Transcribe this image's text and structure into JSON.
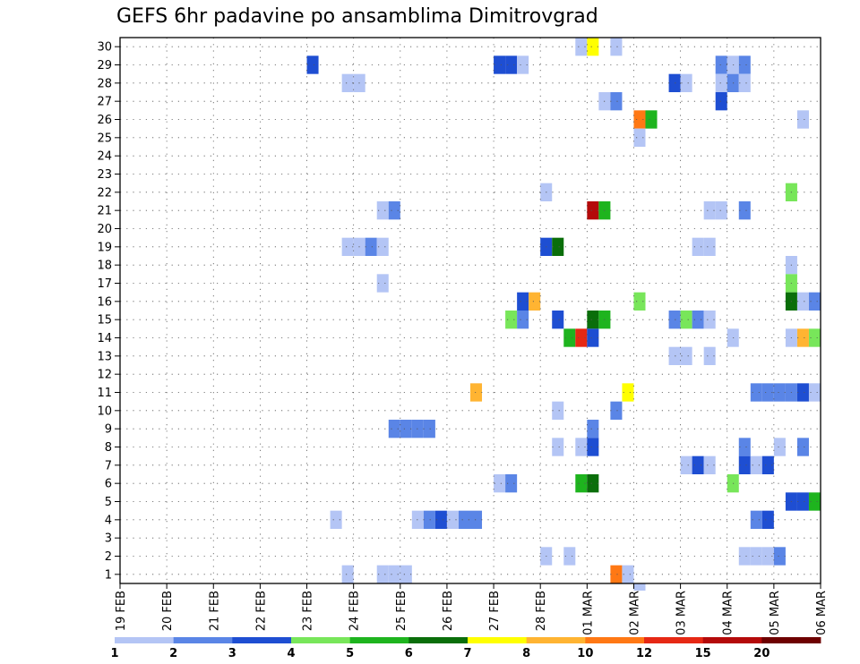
{
  "chart_data": {
    "type": "heatmap",
    "title": "GEFS 6hr padavine po ansamblima Dimitrovgrad",
    "xlabel": "",
    "ylabel": "",
    "x_ticks": [
      "19 FEB",
      "20 FEB",
      "21 FEB",
      "22 FEB",
      "23 FEB",
      "24 FEB",
      "25 FEB",
      "26 FEB",
      "27 FEB",
      "28 FEB",
      "01 MAR",
      "02 MAR",
      "03 MAR",
      "04 MAR",
      "05 MAR",
      "06 MAR"
    ],
    "xlim": [
      0,
      60
    ],
    "ylim": [
      0.5,
      30.5
    ],
    "y_ticks": [
      1,
      2,
      3,
      4,
      5,
      6,
      7,
      8,
      9,
      10,
      11,
      12,
      13,
      14,
      15,
      16,
      17,
      18,
      19,
      20,
      21,
      22,
      23,
      24,
      25,
      26,
      27,
      28,
      29,
      30
    ],
    "grid": true,
    "colorbar": {
      "labels": [
        "1",
        "2",
        "3",
        "4",
        "5",
        "6",
        "7",
        "8",
        "10",
        "12",
        "15",
        "20"
      ],
      "colors": [
        "#b4c5f5",
        "#5a85e6",
        "#1e4ed2",
        "#78e65a",
        "#1eb41e",
        "#0a6e0a",
        "#ffff00",
        "#ffb432",
        "#ff7814",
        "#e62814",
        "#b40a0a",
        "#6e0000"
      ]
    },
    "cells": [
      {
        "member": 30,
        "step": 39,
        "level": 1
      },
      {
        "member": 30,
        "step": 40,
        "level": 7
      },
      {
        "member": 30,
        "step": 42,
        "level": 1
      },
      {
        "member": 29,
        "step": 16,
        "level": 3
      },
      {
        "member": 29,
        "step": 32,
        "level": 3
      },
      {
        "member": 29,
        "step": 33,
        "level": 3
      },
      {
        "member": 29,
        "step": 34,
        "level": 1
      },
      {
        "member": 29,
        "step": 51,
        "level": 2
      },
      {
        "member": 29,
        "step": 52,
        "level": 1
      },
      {
        "member": 29,
        "step": 53,
        "level": 2
      },
      {
        "member": 28,
        "step": 19,
        "level": 1
      },
      {
        "member": 28,
        "step": 20,
        "level": 1
      },
      {
        "member": 28,
        "step": 47,
        "level": 3
      },
      {
        "member": 28,
        "step": 48,
        "level": 1
      },
      {
        "member": 28,
        "step": 51,
        "level": 1
      },
      {
        "member": 28,
        "step": 52,
        "level": 2
      },
      {
        "member": 28,
        "step": 53,
        "level": 1
      },
      {
        "member": 27,
        "step": 41,
        "level": 1
      },
      {
        "member": 27,
        "step": 42,
        "level": 2
      },
      {
        "member": 27,
        "step": 51,
        "level": 3
      },
      {
        "member": 26,
        "step": 44,
        "level": 9
      },
      {
        "member": 26,
        "step": 45,
        "level": 5
      },
      {
        "member": 26,
        "step": 58,
        "level": 1
      },
      {
        "member": 25,
        "step": 44,
        "level": 1
      },
      {
        "member": 22,
        "step": 36,
        "level": 1
      },
      {
        "member": 22,
        "step": 57,
        "level": 4
      },
      {
        "member": 21,
        "step": 22,
        "level": 1
      },
      {
        "member": 21,
        "step": 23,
        "level": 2
      },
      {
        "member": 21,
        "step": 40,
        "level": 11
      },
      {
        "member": 21,
        "step": 41,
        "level": 5
      },
      {
        "member": 21,
        "step": 50,
        "level": 1
      },
      {
        "member": 21,
        "step": 51,
        "level": 1
      },
      {
        "member": 21,
        "step": 53,
        "level": 2
      },
      {
        "member": 19,
        "step": 19,
        "level": 1
      },
      {
        "member": 19,
        "step": 20,
        "level": 1
      },
      {
        "member": 19,
        "step": 21,
        "level": 2
      },
      {
        "member": 19,
        "step": 22,
        "level": 1
      },
      {
        "member": 19,
        "step": 36,
        "level": 3
      },
      {
        "member": 19,
        "step": 37,
        "level": 6
      },
      {
        "member": 19,
        "step": 49,
        "level": 1
      },
      {
        "member": 19,
        "step": 50,
        "level": 1
      },
      {
        "member": 18,
        "step": 57,
        "level": 1
      },
      {
        "member": 17,
        "step": 22,
        "level": 1
      },
      {
        "member": 17,
        "step": 57,
        "level": 4
      },
      {
        "member": 16,
        "step": 34,
        "level": 3
      },
      {
        "member": 16,
        "step": 35,
        "level": 8
      },
      {
        "member": 16,
        "step": 44,
        "level": 4
      },
      {
        "member": 16,
        "step": 57,
        "level": 6
      },
      {
        "member": 16,
        "step": 58,
        "level": 1
      },
      {
        "member": 16,
        "step": 59,
        "level": 2
      },
      {
        "member": 15,
        "step": 33,
        "level": 4
      },
      {
        "member": 15,
        "step": 34,
        "level": 2
      },
      {
        "member": 15,
        "step": 37,
        "level": 3
      },
      {
        "member": 15,
        "step": 40,
        "level": 6
      },
      {
        "member": 15,
        "step": 41,
        "level": 5
      },
      {
        "member": 15,
        "step": 47,
        "level": 2
      },
      {
        "member": 15,
        "step": 48,
        "level": 4
      },
      {
        "member": 15,
        "step": 49,
        "level": 2
      },
      {
        "member": 15,
        "step": 50,
        "level": 1
      },
      {
        "member": 14,
        "step": 38,
        "level": 5
      },
      {
        "member": 14,
        "step": 39,
        "level": 10
      },
      {
        "member": 14,
        "step": 40,
        "level": 3
      },
      {
        "member": 14,
        "step": 52,
        "level": 1
      },
      {
        "member": 14,
        "step": 57,
        "level": 1
      },
      {
        "member": 14,
        "step": 58,
        "level": 8
      },
      {
        "member": 14,
        "step": 59,
        "level": 4
      },
      {
        "member": 13,
        "step": 47,
        "level": 1
      },
      {
        "member": 13,
        "step": 48,
        "level": 1
      },
      {
        "member": 13,
        "step": 50,
        "level": 1
      },
      {
        "member": 11,
        "step": 30,
        "level": 8
      },
      {
        "member": 11,
        "step": 43,
        "level": 7
      },
      {
        "member": 11,
        "step": 54,
        "level": 2
      },
      {
        "member": 11,
        "step": 55,
        "level": 2
      },
      {
        "member": 11,
        "step": 56,
        "level": 2
      },
      {
        "member": 11,
        "step": 57,
        "level": 2
      },
      {
        "member": 11,
        "step": 58,
        "level": 3
      },
      {
        "member": 11,
        "step": 59,
        "level": 1
      },
      {
        "member": 10,
        "step": 37,
        "level": 1
      },
      {
        "member": 10,
        "step": 42,
        "level": 2
      },
      {
        "member": 9,
        "step": 23,
        "level": 2
      },
      {
        "member": 9,
        "step": 24,
        "level": 2
      },
      {
        "member": 9,
        "step": 25,
        "level": 2
      },
      {
        "member": 9,
        "step": 26,
        "level": 2
      },
      {
        "member": 9,
        "step": 40,
        "level": 2
      },
      {
        "member": 8,
        "step": 37,
        "level": 1
      },
      {
        "member": 8,
        "step": 39,
        "level": 1
      },
      {
        "member": 8,
        "step": 40,
        "level": 3
      },
      {
        "member": 8,
        "step": 53,
        "level": 2
      },
      {
        "member": 8,
        "step": 56,
        "level": 1
      },
      {
        "member": 8,
        "step": 58,
        "level": 2
      },
      {
        "member": 7,
        "step": 48,
        "level": 1
      },
      {
        "member": 7,
        "step": 49,
        "level": 3
      },
      {
        "member": 7,
        "step": 50,
        "level": 1
      },
      {
        "member": 7,
        "step": 53,
        "level": 3
      },
      {
        "member": 7,
        "step": 54,
        "level": 1
      },
      {
        "member": 7,
        "step": 55,
        "level": 3
      },
      {
        "member": 6,
        "step": 32,
        "level": 1
      },
      {
        "member": 6,
        "step": 33,
        "level": 2
      },
      {
        "member": 6,
        "step": 39,
        "level": 5
      },
      {
        "member": 6,
        "step": 40,
        "level": 6
      },
      {
        "member": 6,
        "step": 52,
        "level": 4
      },
      {
        "member": 5,
        "step": 57,
        "level": 3
      },
      {
        "member": 5,
        "step": 58,
        "level": 3
      },
      {
        "member": 5,
        "step": 59,
        "level": 5
      },
      {
        "member": 4,
        "step": 18,
        "level": 1
      },
      {
        "member": 4,
        "step": 25,
        "level": 1
      },
      {
        "member": 4,
        "step": 26,
        "level": 2
      },
      {
        "member": 4,
        "step": 27,
        "level": 3
      },
      {
        "member": 4,
        "step": 28,
        "level": 1
      },
      {
        "member": 4,
        "step": 29,
        "level": 2
      },
      {
        "member": 4,
        "step": 30,
        "level": 2
      },
      {
        "member": 4,
        "step": 54,
        "level": 2
      },
      {
        "member": 4,
        "step": 55,
        "level": 3
      },
      {
        "member": 2,
        "step": 36,
        "level": 1
      },
      {
        "member": 2,
        "step": 38,
        "level": 1
      },
      {
        "member": 2,
        "step": 53,
        "level": 1
      },
      {
        "member": 2,
        "step": 54,
        "level": 1
      },
      {
        "member": 2,
        "step": 55,
        "level": 1
      },
      {
        "member": 2,
        "step": 56,
        "level": 2
      },
      {
        "member": 1,
        "step": 19,
        "level": 1
      },
      {
        "member": 1,
        "step": 22,
        "level": 1
      },
      {
        "member": 1,
        "step": 23,
        "level": 1
      },
      {
        "member": 1,
        "step": 24,
        "level": 1
      },
      {
        "member": 1,
        "step": 42,
        "level": 9
      },
      {
        "member": 1,
        "step": 43,
        "level": 1
      },
      {
        "member": 0,
        "step": 44,
        "level": 1
      }
    ]
  }
}
